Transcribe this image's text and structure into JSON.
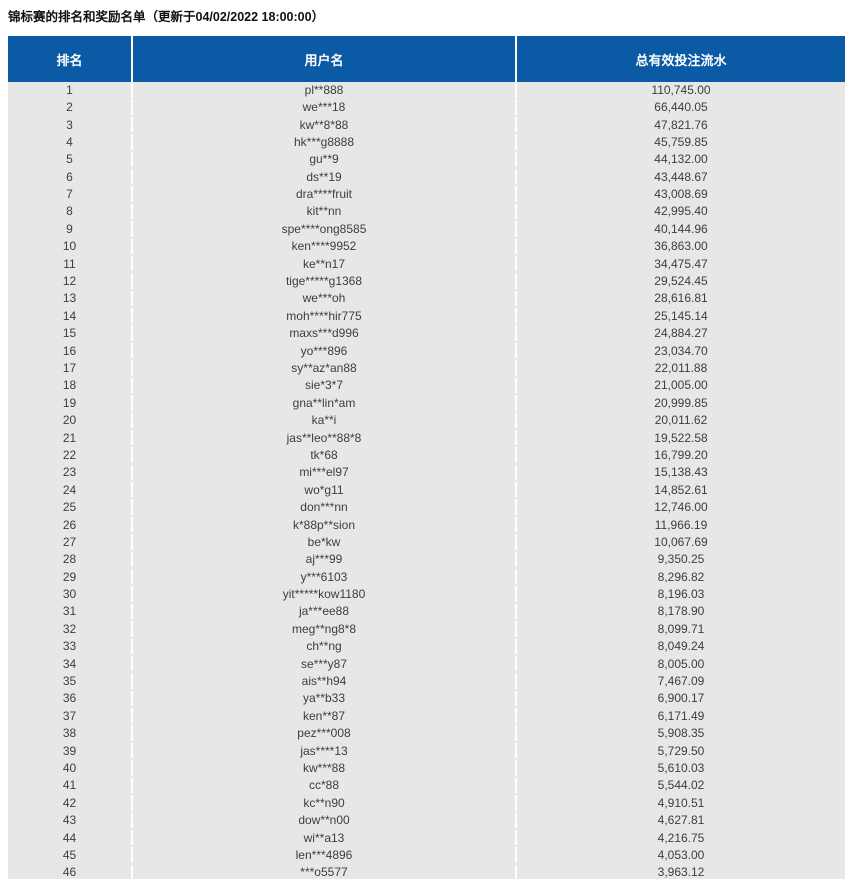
{
  "title": "锦标赛的排名和奖励名单（更新于04/02/2022 18:00:00）",
  "colors": {
    "header_bg": "#0b5aa5",
    "row_bg": "#e7e7e7",
    "header_text": "#ffffff",
    "body_text": "#3d3d3d"
  },
  "table": {
    "headers": [
      "排名",
      "用户名",
      "总有效投注流水"
    ],
    "rows": [
      {
        "rank": "1",
        "username": "pl**888",
        "turnover": "110,745.00"
      },
      {
        "rank": "2",
        "username": "we***18",
        "turnover": "66,440.05"
      },
      {
        "rank": "3",
        "username": "kw**8*88",
        "turnover": "47,821.76"
      },
      {
        "rank": "4",
        "username": "hk***g8888",
        "turnover": "45,759.85"
      },
      {
        "rank": "5",
        "username": "gu**9",
        "turnover": "44,132.00"
      },
      {
        "rank": "6",
        "username": "ds**19",
        "turnover": "43,448.67"
      },
      {
        "rank": "7",
        "username": "dra****fruit",
        "turnover": "43,008.69"
      },
      {
        "rank": "8",
        "username": "kit**nn",
        "turnover": "42,995.40"
      },
      {
        "rank": "9",
        "username": "spe****ong8585",
        "turnover": "40,144.96"
      },
      {
        "rank": "10",
        "username": "ken****9952",
        "turnover": "36,863.00"
      },
      {
        "rank": "11",
        "username": "ke**n17",
        "turnover": "34,475.47"
      },
      {
        "rank": "12",
        "username": "tige*****g1368",
        "turnover": "29,524.45"
      },
      {
        "rank": "13",
        "username": "we***oh",
        "turnover": "28,616.81"
      },
      {
        "rank": "14",
        "username": "moh****hir775",
        "turnover": "25,145.14"
      },
      {
        "rank": "15",
        "username": "maxs***d996",
        "turnover": "24,884.27"
      },
      {
        "rank": "16",
        "username": "yo***896",
        "turnover": "23,034.70"
      },
      {
        "rank": "17",
        "username": "sy**az*an88",
        "turnover": "22,011.88"
      },
      {
        "rank": "18",
        "username": "sie*3*7",
        "turnover": "21,005.00"
      },
      {
        "rank": "19",
        "username": "gna**lin*am",
        "turnover": "20,999.85"
      },
      {
        "rank": "20",
        "username": "ka**i",
        "turnover": "20,011.62"
      },
      {
        "rank": "21",
        "username": "jas**leo**88*8",
        "turnover": "19,522.58"
      },
      {
        "rank": "22",
        "username": "tk*68",
        "turnover": "16,799.20"
      },
      {
        "rank": "23",
        "username": "mi***el97",
        "turnover": "15,138.43"
      },
      {
        "rank": "24",
        "username": "wo*g11",
        "turnover": "14,852.61"
      },
      {
        "rank": "25",
        "username": "don***nn",
        "turnover": "12,746.00"
      },
      {
        "rank": "26",
        "username": "k*88p**sion",
        "turnover": "11,966.19"
      },
      {
        "rank": "27",
        "username": "be*kw",
        "turnover": "10,067.69"
      },
      {
        "rank": "28",
        "username": "aj***99",
        "turnover": "9,350.25"
      },
      {
        "rank": "29",
        "username": "y***6103",
        "turnover": "8,296.82"
      },
      {
        "rank": "30",
        "username": "yit*****kow1180",
        "turnover": "8,196.03"
      },
      {
        "rank": "31",
        "username": "ja***ee88",
        "turnover": "8,178.90"
      },
      {
        "rank": "32",
        "username": "meg**ng8*8",
        "turnover": "8,099.71"
      },
      {
        "rank": "33",
        "username": "ch**ng",
        "turnover": "8,049.24"
      },
      {
        "rank": "34",
        "username": "se***y87",
        "turnover": "8,005.00"
      },
      {
        "rank": "35",
        "username": "ais**h94",
        "turnover": "7,467.09"
      },
      {
        "rank": "36",
        "username": "ya**b33",
        "turnover": "6,900.17"
      },
      {
        "rank": "37",
        "username": "ken**87",
        "turnover": "6,171.49"
      },
      {
        "rank": "38",
        "username": "pez***008",
        "turnover": "5,908.35"
      },
      {
        "rank": "39",
        "username": "jas****13",
        "turnover": "5,729.50"
      },
      {
        "rank": "40",
        "username": "kw***88",
        "turnover": "5,610.03"
      },
      {
        "rank": "41",
        "username": "cc*88",
        "turnover": "5,544.02"
      },
      {
        "rank": "42",
        "username": "kc**n90",
        "turnover": "4,910.51"
      },
      {
        "rank": "43",
        "username": "dow**n00",
        "turnover": "4,627.81"
      },
      {
        "rank": "44",
        "username": "wi**a13",
        "turnover": "4,216.75"
      },
      {
        "rank": "45",
        "username": "len***4896",
        "turnover": "4,053.00"
      },
      {
        "rank": "46",
        "username": "***o5577",
        "turnover": "3,963.12"
      }
    ]
  }
}
